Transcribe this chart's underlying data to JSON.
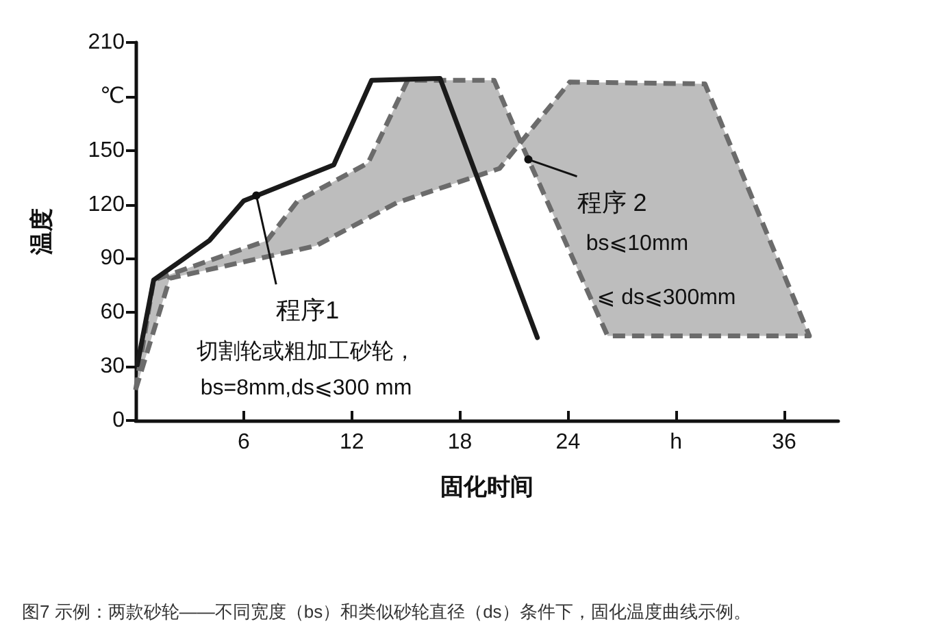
{
  "chart_data": {
    "type": "line",
    "xlabel": "固化时间",
    "ylabel": "温度",
    "xlim": [
      0,
      39
    ],
    "xticks": [
      6,
      12,
      18,
      24,
      {
        "value": 30,
        "label": "h"
      },
      36
    ],
    "ylim": [
      0,
      210
    ],
    "yticks": [
      0,
      30,
      60,
      90,
      120,
      150,
      {
        "value": 180,
        "label": "℃"
      },
      210
    ],
    "grid": false,
    "marker": "none",
    "series": [
      {
        "color": "#1a1a1a",
        "line_style": "solid",
        "x": [
          0.1,
          1.0,
          4.1,
          6.0,
          11.0,
          13.1,
          16.9,
          22.3
        ],
        "values": [
          31,
          78,
          100,
          122,
          142,
          189,
          190,
          46
        ]
      },
      {
        "type": "area",
        "color": "#bdbdbd",
        "line_style": "dashed",
        "x": [
          0,
          1.0,
          7.3,
          9.0,
          12.9,
          15.1,
          19.9,
          21.4,
          26.2,
          37.4,
          31.6,
          24.1,
          20.2,
          14.5,
          10.0,
          1.9
        ],
        "values": [
          17,
          78,
          100,
          122,
          143,
          189,
          189,
          154,
          47,
          47,
          187,
          188,
          140,
          121,
          97,
          79
        ]
      }
    ],
    "annotations": [
      {
        "text": "程序1",
        "x": 6.7,
        "y": 125
      },
      "切割轮或粗加工砂轮，",
      "bs=8mm,ds⩽300 mm",
      {
        "text": "程序 2",
        "x": 21.8,
        "y": 145
      },
      "bs⩽10mm",
      "⩽ ds⩽300mm",
      "图7 示例：两款砂轮——不同宽度（bs）和类似砂轮直径（ds）条件下，固化温度曲线示例。"
    ]
  }
}
